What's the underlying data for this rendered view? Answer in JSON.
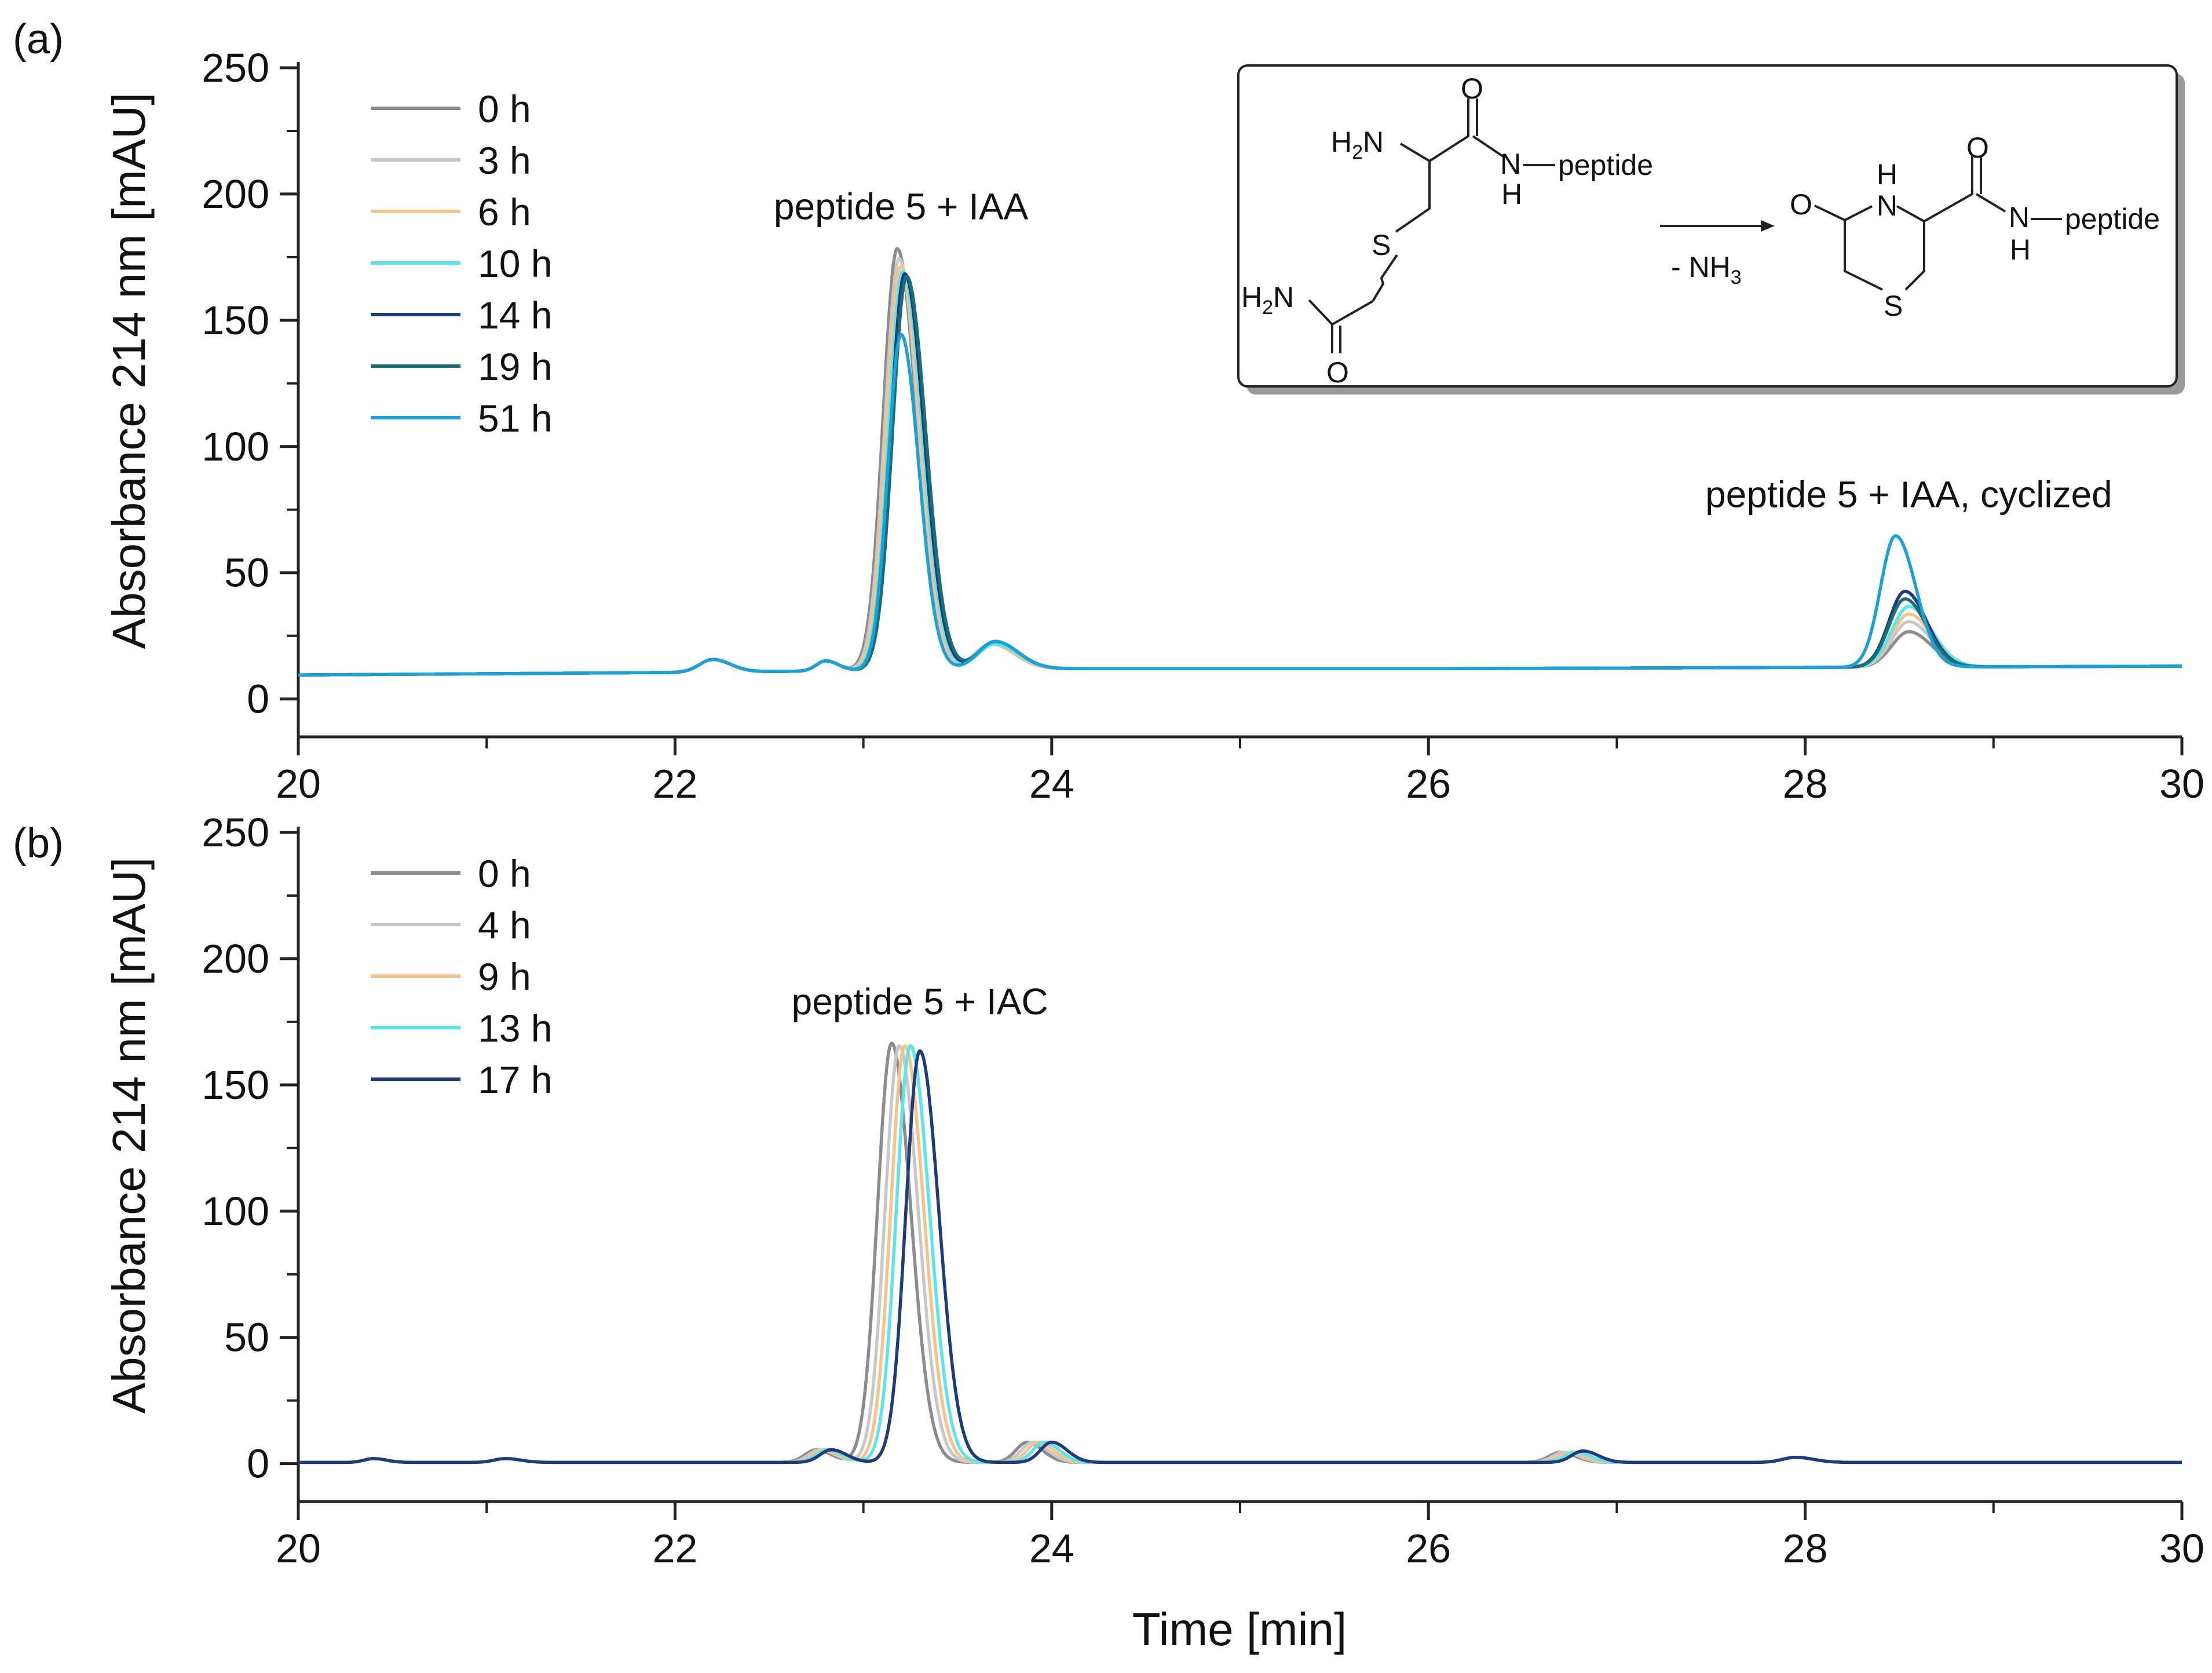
{
  "figure": {
    "xlabel": "Time [min]"
  },
  "chart_data": [
    {
      "type": "line",
      "panel_label": "(a)",
      "xlabel": "Time [min]",
      "ylabel": "Absorbance 214 nm [mAU]",
      "xlim": [
        20,
        30
      ],
      "ylim": [
        -15,
        250
      ],
      "x_ticks": [
        "20",
        "22",
        "24",
        "26",
        "28",
        "30"
      ],
      "y_ticks": [
        "0",
        "50",
        "100",
        "150",
        "200",
        "250"
      ],
      "grid": false,
      "legend_position": "top-left",
      "annotations": [
        {
          "text": "peptide 5 + IAA",
          "x": 23.2,
          "y": 190
        },
        {
          "text": "peptide 5 + IAA, cyclized",
          "x": 28.55,
          "y": 76
        }
      ],
      "inset_scheme": {
        "reactant": {
          "h2n_top": "H2N",
          "o_top": "O",
          "nh": "N",
          "h": "H",
          "peptide": "peptide",
          "s": "S",
          "h2n_bottom": "H2N",
          "o_bottom": "O"
        },
        "condition": "- NH3",
        "product": {
          "o_ring": "O",
          "h_ring": "H",
          "n_ring": "N",
          "o_amide": "O",
          "n_amide": "N",
          "h_amide": "H",
          "peptide": "peptide",
          "s": "S"
        }
      },
      "series": [
        {
          "name": "0 h",
          "color": "#8c8c8c",
          "baseline": [
            [
              20,
              9.5
            ],
            [
              22,
              10.5
            ],
            [
              24,
              12
            ],
            [
              26,
              12
            ],
            [
              28,
              12.5
            ],
            [
              30,
              13
            ]
          ],
          "peaks": [
            [
              22.2,
              5,
              0.07
            ],
            [
              22.8,
              4,
              0.05
            ],
            [
              23.18,
              167,
              0.075
            ],
            [
              23.68,
              10,
              0.09
            ],
            [
              28.55,
              14,
              0.09
            ]
          ]
        },
        {
          "name": "3 h",
          "color": "#c8c8c8",
          "baseline": [
            [
              20,
              9.5
            ],
            [
              22,
              10.5
            ],
            [
              24,
              12
            ],
            [
              26,
              12
            ],
            [
              28,
              12.5
            ],
            [
              30,
              13
            ]
          ],
          "peaks": [
            [
              22.2,
              5,
              0.07
            ],
            [
              22.8,
              4,
              0.05
            ],
            [
              23.19,
              163,
              0.075
            ],
            [
              23.68,
              10,
              0.09
            ],
            [
              28.55,
              18,
              0.09
            ]
          ]
        },
        {
          "name": "6 h",
          "color": "#f5c48a",
          "baseline": [
            [
              20,
              9.5
            ],
            [
              22,
              10.5
            ],
            [
              24,
              12
            ],
            [
              26,
              12
            ],
            [
              28,
              12.5
            ],
            [
              30,
              13
            ]
          ],
          "peaks": [
            [
              22.2,
              5,
              0.07
            ],
            [
              22.8,
              4,
              0.05
            ],
            [
              23.2,
              160,
              0.075
            ],
            [
              23.69,
              10,
              0.09
            ],
            [
              28.55,
              21,
              0.09
            ]
          ]
        },
        {
          "name": "10 h",
          "color": "#5ce6ea",
          "baseline": [
            [
              20,
              9.5
            ],
            [
              22,
              10.5
            ],
            [
              24,
              12
            ],
            [
              26,
              12
            ],
            [
              28,
              12.5
            ],
            [
              30,
              13
            ]
          ],
          "peaks": [
            [
              22.2,
              5,
              0.07
            ],
            [
              22.8,
              4,
              0.05
            ],
            [
              23.21,
              158,
              0.075
            ],
            [
              23.7,
              10,
              0.09
            ],
            [
              28.55,
              24,
              0.09
            ]
          ]
        },
        {
          "name": "14 h",
          "color": "#1d3b7d",
          "baseline": [
            [
              20,
              9.5
            ],
            [
              22,
              10.5
            ],
            [
              24,
              12
            ],
            [
              26,
              12
            ],
            [
              28,
              12.5
            ],
            [
              30,
              13
            ]
          ],
          "peaks": [
            [
              22.2,
              5,
              0.07
            ],
            [
              22.8,
              4,
              0.05
            ],
            [
              23.22,
              157,
              0.075
            ],
            [
              23.7,
              11,
              0.09
            ],
            [
              28.53,
              30,
              0.085
            ]
          ]
        },
        {
          "name": "19 h",
          "color": "#1a6e78",
          "baseline": [
            [
              20,
              9.5
            ],
            [
              22,
              10.5
            ],
            [
              24,
              12
            ],
            [
              26,
              12
            ],
            [
              28,
              12.5
            ],
            [
              30,
              13
            ]
          ],
          "peaks": [
            [
              22.2,
              5,
              0.07
            ],
            [
              22.8,
              4,
              0.05
            ],
            [
              23.23,
              156,
              0.075
            ],
            [
              23.7,
              11,
              0.09
            ],
            [
              28.53,
              27,
              0.085
            ]
          ]
        },
        {
          "name": "51 h",
          "color": "#1ba1d8",
          "baseline": [
            [
              20,
              9.5
            ],
            [
              22,
              10.5
            ],
            [
              24,
              12
            ],
            [
              26,
              12
            ],
            [
              28,
              12.5
            ],
            [
              30,
              13
            ]
          ],
          "peaks": [
            [
              22.2,
              5,
              0.07
            ],
            [
              22.8,
              4,
              0.05
            ],
            [
              23.2,
              133,
              0.07
            ],
            [
              23.7,
              11,
              0.09
            ],
            [
              28.48,
              52,
              0.08
            ]
          ]
        }
      ]
    },
    {
      "type": "line",
      "panel_label": "(b)",
      "xlabel": "Time [min]",
      "ylabel": "Absorbance 214 nm [mAU]",
      "xlim": [
        20,
        30
      ],
      "ylim": [
        -15,
        250
      ],
      "x_ticks": [
        "20",
        "22",
        "24",
        "26",
        "28",
        "30"
      ],
      "y_ticks": [
        "0",
        "50",
        "100",
        "150",
        "200",
        "250"
      ],
      "grid": false,
      "legend_position": "top-left",
      "annotations": [
        {
          "text": "peptide 5 + IAC",
          "x": 23.3,
          "y": 178
        }
      ],
      "series": [
        {
          "name": "0 h",
          "color": "#8c8c8c",
          "baseline": [
            [
              20,
              0.5
            ],
            [
              30,
              0.5
            ]
          ],
          "peaks": [
            [
              20.4,
              1.5,
              0.05
            ],
            [
              21.1,
              1.5,
              0.06
            ],
            [
              22.75,
              5,
              0.06
            ],
            [
              23.15,
              166,
              0.075
            ],
            [
              23.87,
              8,
              0.06
            ],
            [
              26.7,
              4,
              0.06
            ],
            [
              27.95,
              2,
              0.07
            ]
          ]
        },
        {
          "name": "4 h",
          "color": "#c8c8c8",
          "baseline": [
            [
              20,
              0.5
            ],
            [
              30,
              0.5
            ]
          ],
          "peaks": [
            [
              20.4,
              1.5,
              0.05
            ],
            [
              21.1,
              1.5,
              0.06
            ],
            [
              22.77,
              5,
              0.06
            ],
            [
              23.19,
              165,
              0.075
            ],
            [
              23.9,
              8,
              0.06
            ],
            [
              26.72,
              4,
              0.06
            ],
            [
              27.95,
              2,
              0.07
            ]
          ]
        },
        {
          "name": "9 h",
          "color": "#f5c48a",
          "baseline": [
            [
              20,
              0.5
            ],
            [
              30,
              0.5
            ]
          ],
          "peaks": [
            [
              20.4,
              1.5,
              0.05
            ],
            [
              21.1,
              1.5,
              0.06
            ],
            [
              22.79,
              5,
              0.06
            ],
            [
              23.22,
              165,
              0.075
            ],
            [
              23.93,
              8,
              0.06
            ],
            [
              26.75,
              4,
              0.06
            ],
            [
              27.95,
              2,
              0.07
            ]
          ]
        },
        {
          "name": "13 h",
          "color": "#5ce6ea",
          "baseline": [
            [
              20,
              0.5
            ],
            [
              30,
              0.5
            ]
          ],
          "peaks": [
            [
              20.4,
              1.5,
              0.05
            ],
            [
              21.1,
              1.5,
              0.06
            ],
            [
              22.81,
              5,
              0.06
            ],
            [
              23.25,
              165,
              0.075
            ],
            [
              23.96,
              8,
              0.06
            ],
            [
              26.78,
              4,
              0.06
            ],
            [
              27.95,
              2,
              0.07
            ]
          ]
        },
        {
          "name": "17 h",
          "color": "#1d3b7d",
          "baseline": [
            [
              20,
              0.5
            ],
            [
              30,
              0.5
            ]
          ],
          "peaks": [
            [
              20.4,
              1.5,
              0.05
            ],
            [
              21.1,
              1.5,
              0.06
            ],
            [
              22.83,
              5,
              0.06
            ],
            [
              23.3,
              163,
              0.075
            ],
            [
              24.0,
              8,
              0.06
            ],
            [
              26.82,
              4.5,
              0.06
            ],
            [
              27.95,
              2,
              0.07
            ]
          ]
        }
      ]
    }
  ]
}
